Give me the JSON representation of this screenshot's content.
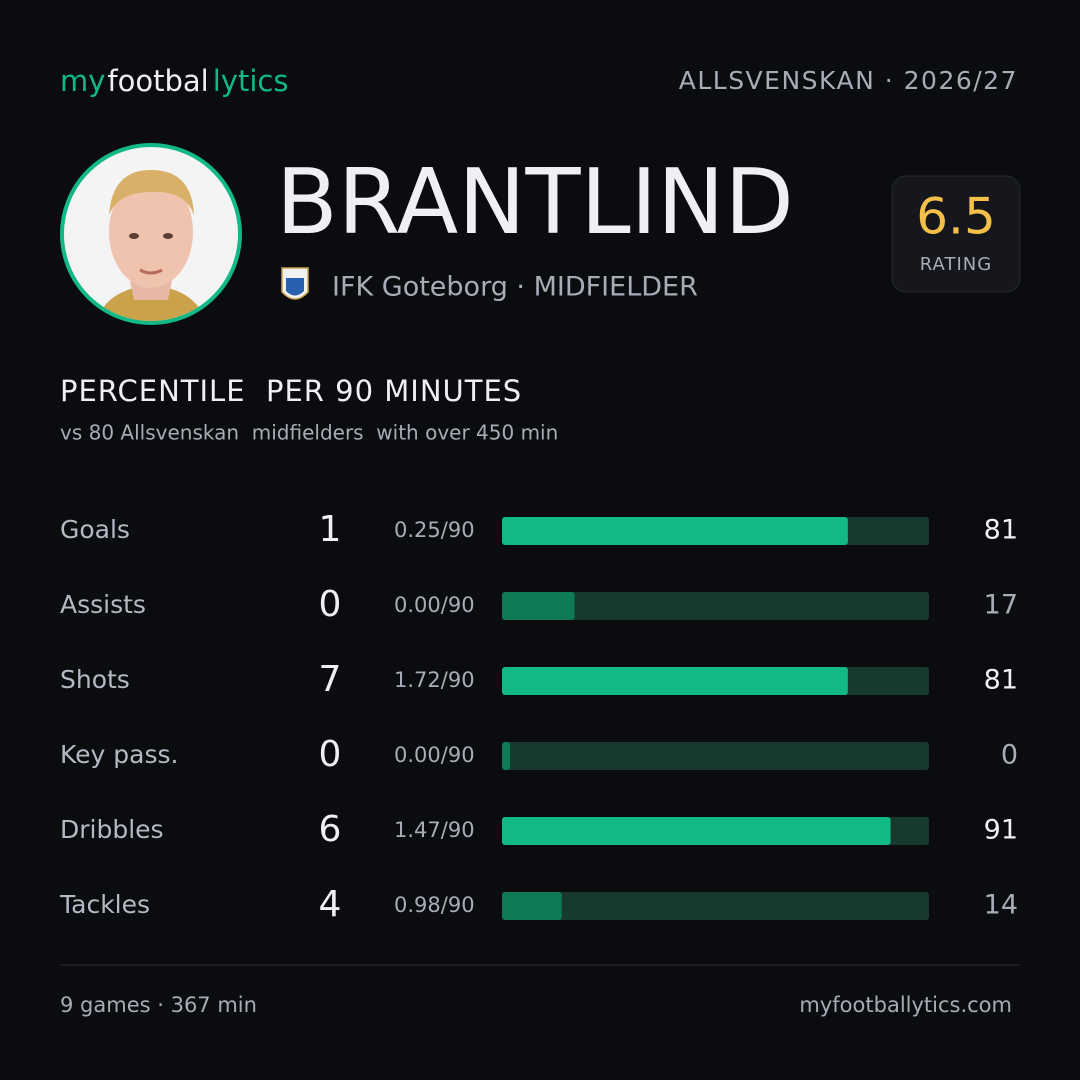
{
  "brand": {
    "parts": [
      "my",
      "footbal",
      "lytics"
    ]
  },
  "header": {
    "competition": "ALLSVENSKAN · 2026/27"
  },
  "player": {
    "name": "BRANTLIND",
    "club_position": "IFK Goteborg · MIDFIELDER",
    "rating": 6.5,
    "rating_label": "RATING"
  },
  "section": {
    "title": "PERCENTILE  PER 90 MINUTES",
    "subtitle": "vs 80 Allsvenskan  midfielders  with over 450 min"
  },
  "stats": {
    "xlim": [
      0,
      100
    ],
    "track_color": "#183a2e",
    "rows": [
      {
        "label": "Goals",
        "total": 1,
        "per90": "0.25/90",
        "percentile": 81,
        "color": "#12b886"
      },
      {
        "label": "Assists",
        "total": 0,
        "per90": "0.00/90",
        "percentile": 17,
        "color": "#0e7a56"
      },
      {
        "label": "Shots",
        "total": 7,
        "per90": "1.72/90",
        "percentile": 81,
        "color": "#12b886"
      },
      {
        "label": "Key pass.",
        "total": 0,
        "per90": "0.00/90",
        "percentile": 0,
        "color": "#0e7a56"
      },
      {
        "label": "Dribbles",
        "total": 6,
        "per90": "1.47/90",
        "percentile": 91,
        "color": "#12b886"
      },
      {
        "label": "Tackles",
        "total": 4,
        "per90": "0.98/90",
        "percentile": 14,
        "color": "#0e7a56"
      }
    ]
  },
  "footer": {
    "summary": "9 games · 367 min",
    "site": "myfootballytics.com"
  }
}
